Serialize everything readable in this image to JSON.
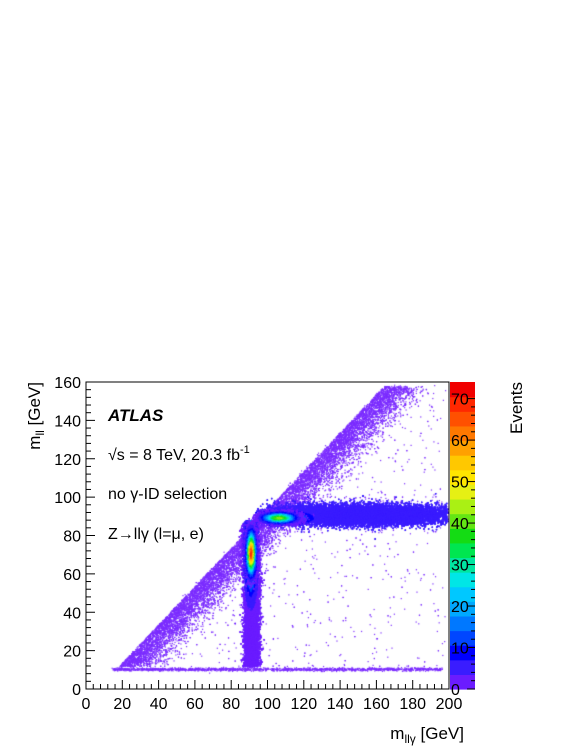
{
  "chart_data": {
    "type": "heatmap",
    "title": "",
    "xlabel": "m_{llγ} [GeV]",
    "ylabel": "m_{ll} [GeV]",
    "zlabel": "Events",
    "xlim": [
      0,
      200
    ],
    "ylim": [
      0,
      160
    ],
    "zlim": [
      0,
      74
    ],
    "x_ticks": [
      "0",
      "20",
      "40",
      "60",
      "80",
      "100",
      "120",
      "140",
      "160",
      "180",
      "200"
    ],
    "y_ticks": [
      "0",
      "20",
      "40",
      "60",
      "80",
      "100",
      "120",
      "140",
      "160"
    ],
    "z_ticks": [
      "0",
      "10",
      "20",
      "30",
      "40",
      "50",
      "60",
      "70"
    ],
    "colorbar_colors": [
      "#6b1cff",
      "#3a1cff",
      "#0000ff",
      "#0046ff",
      "#0078ff",
      "#00a8ff",
      "#00c8ff",
      "#00e6e6",
      "#00e6a0",
      "#00e650",
      "#14dc14",
      "#64e614",
      "#aaf014",
      "#e6f014",
      "#ffe600",
      "#ffc800",
      "#ffa000",
      "#ff7800",
      "#ff5000",
      "#ff2800",
      "#f00000"
    ],
    "regions": [
      {
        "name": "Z_to_ll_gamma_FSR_peak",
        "x_center": 91,
        "y_range": [
          10,
          82
        ],
        "peak_y": 72,
        "peak_events": 70
      },
      {
        "name": "Z_to_ll_ISR_band",
        "y_center": 91,
        "x_range": [
          95,
          200
        ],
        "peak_x": 108,
        "peak_events": 40
      },
      {
        "name": "kinematic_edge",
        "relation": "m_llgamma >= m_ll"
      },
      {
        "name": "low_mll_cut",
        "y": 10
      }
    ],
    "annotations": {
      "experiment": "ATLAS",
      "energy_prefix": "√s = 8 TeV, 20.3 fb",
      "energy_sup": "-1",
      "selection": "no γ-ID selection",
      "process": "Z→llγ (l=μ, e)"
    }
  },
  "axis_text": {
    "x_main": "m",
    "x_sub": "llγ",
    "x_unit": " [GeV]",
    "y_main": "m",
    "y_sub": "ll",
    "y_unit": " [GeV]",
    "z_title": "Events"
  },
  "colors": {
    "point_base": "#7b2cff",
    "frame": "#000000"
  }
}
